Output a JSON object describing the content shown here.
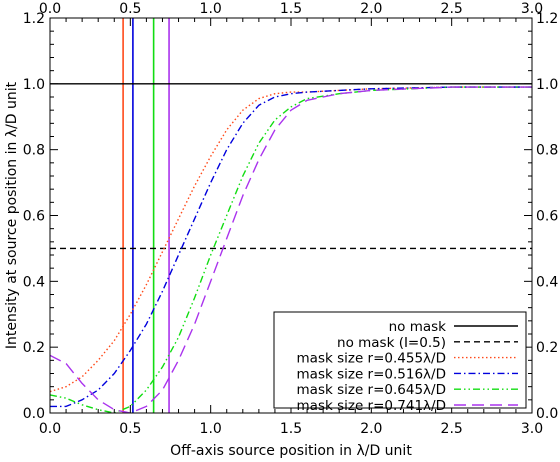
{
  "chart_data": {
    "type": "line",
    "xlabel": "Off-axis source position in λ/D unit",
    "ylabel": "Intensity at source position in λ/D unit",
    "xlim": [
      0.0,
      3.0
    ],
    "ylim": [
      0.0,
      1.2
    ],
    "x_ticks": [
      "0.0",
      "0.5",
      "1.0",
      "1.5",
      "2.0",
      "2.5",
      "3.0"
    ],
    "y_ticks": [
      "0.0",
      "0.2",
      "0.4",
      "0.6",
      "0.8",
      "1.0",
      "1.2"
    ],
    "legend_position": "bottom-right",
    "series": [
      {
        "name": "no mask",
        "color": "#000000",
        "style": "solid",
        "x": [
          0.0,
          3.0
        ],
        "y": [
          1.0,
          1.0
        ]
      },
      {
        "name": "no mask (I=0.5)",
        "color": "#000000",
        "style": "dashed",
        "x": [
          0.0,
          3.0
        ],
        "y": [
          0.5,
          0.5
        ]
      },
      {
        "name": "mask size r=0.455λ/D",
        "color": "#ff4a1a",
        "style": "dotted",
        "mask_radius": 0.455,
        "x": [
          0.0,
          0.1,
          0.2,
          0.3,
          0.4,
          0.5,
          0.6,
          0.7,
          0.8,
          0.9,
          1.0,
          1.1,
          1.2,
          1.3,
          1.4,
          1.5,
          1.6,
          1.8,
          2.0,
          2.5,
          3.0
        ],
        "y": [
          0.065,
          0.08,
          0.11,
          0.16,
          0.22,
          0.3,
          0.39,
          0.49,
          0.59,
          0.69,
          0.78,
          0.86,
          0.92,
          0.955,
          0.97,
          0.975,
          0.975,
          0.98,
          0.985,
          0.99,
          0.99
        ]
      },
      {
        "name": "mask size r=0.516λ/D",
        "color": "#0000dd",
        "style": "dash-dot",
        "mask_radius": 0.516,
        "x": [
          0.0,
          0.1,
          0.2,
          0.3,
          0.4,
          0.5,
          0.6,
          0.7,
          0.8,
          0.9,
          1.0,
          1.1,
          1.2,
          1.3,
          1.4,
          1.5,
          1.6,
          1.8,
          2.0,
          2.5,
          3.0
        ],
        "y": [
          0.02,
          0.02,
          0.04,
          0.07,
          0.12,
          0.19,
          0.27,
          0.37,
          0.48,
          0.59,
          0.7,
          0.8,
          0.88,
          0.935,
          0.96,
          0.97,
          0.975,
          0.98,
          0.985,
          0.99,
          0.99
        ]
      },
      {
        "name": "mask size r=0.645λ/D",
        "color": "#11dd11",
        "style": "dash-dot-dot",
        "mask_radius": 0.645,
        "x": [
          0.0,
          0.1,
          0.2,
          0.3,
          0.4,
          0.5,
          0.6,
          0.7,
          0.8,
          0.9,
          1.0,
          1.1,
          1.2,
          1.3,
          1.4,
          1.5,
          1.6,
          1.8,
          2.0,
          2.5,
          3.0
        ],
        "y": [
          0.055,
          0.045,
          0.025,
          0.01,
          0.0,
          0.02,
          0.07,
          0.14,
          0.23,
          0.35,
          0.48,
          0.6,
          0.72,
          0.82,
          0.89,
          0.93,
          0.955,
          0.97,
          0.98,
          0.99,
          0.99
        ]
      },
      {
        "name": "mask size r=0.741λ/D",
        "color": "#aa33ee",
        "style": "long-dash",
        "mask_radius": 0.741,
        "x": [
          0.0,
          0.1,
          0.2,
          0.3,
          0.4,
          0.5,
          0.6,
          0.7,
          0.8,
          0.9,
          1.0,
          1.1,
          1.2,
          1.3,
          1.4,
          1.5,
          1.6,
          1.8,
          2.0,
          2.5,
          3.0
        ],
        "y": [
          0.175,
          0.15,
          0.09,
          0.04,
          0.01,
          0.0,
          0.02,
          0.07,
          0.16,
          0.27,
          0.4,
          0.53,
          0.66,
          0.77,
          0.86,
          0.92,
          0.95,
          0.97,
          0.98,
          0.99,
          0.99
        ]
      }
    ]
  }
}
